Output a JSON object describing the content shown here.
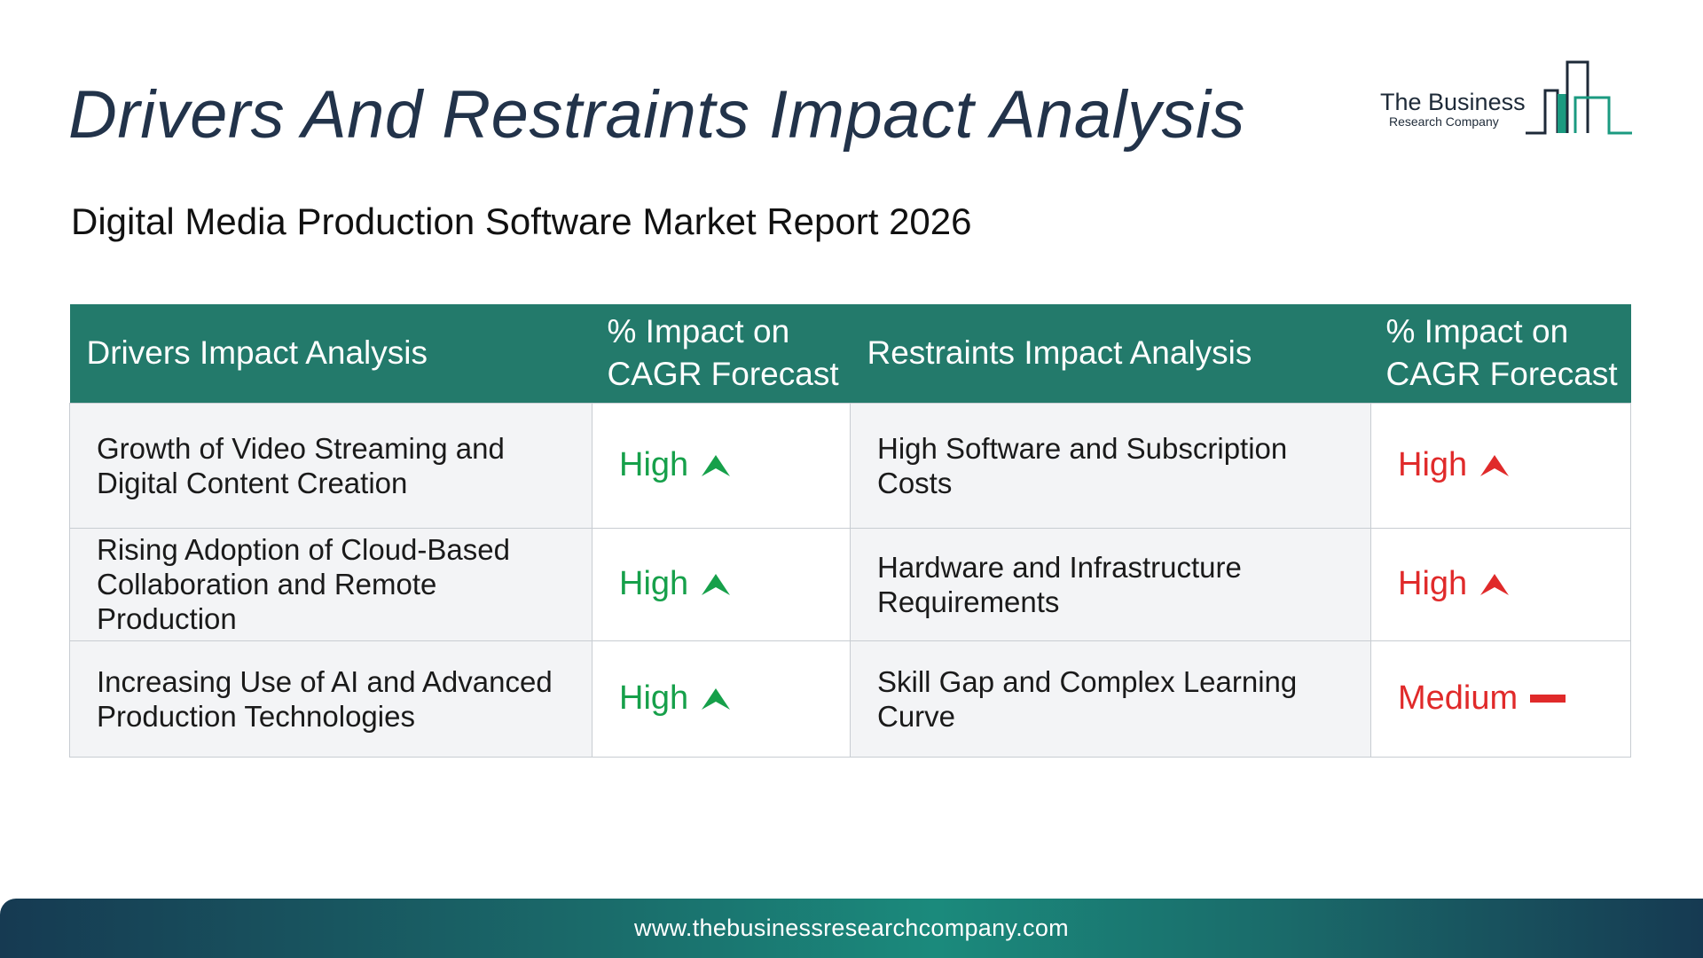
{
  "page": {
    "title": "Drivers And Restraints Impact Analysis",
    "subtitle": "Digital Media Production Software Market Report 2026"
  },
  "logo": {
    "line1": "The Business",
    "line2": "Research Company"
  },
  "table": {
    "headers": {
      "drivers": "Drivers Impact Analysis",
      "drivers_impact_line1": "% Impact on",
      "drivers_impact_line2": "CAGR Forecast",
      "restraints": "Restraints Impact Analysis",
      "restraints_impact_line1": "% Impact on",
      "restraints_impact_line2": "CAGR Forecast"
    },
    "rows": [
      {
        "driver": "Growth of Video Streaming and Digital Content Creation",
        "driver_impact": "High",
        "driver_trend": "up-arrow-icon",
        "restraint": "High Software and Subscription Costs",
        "restraint_impact": "High",
        "restraint_trend": "up-arrow-icon"
      },
      {
        "driver": "Rising Adoption of Cloud-Based Collaboration and Remote Production",
        "driver_impact": "High",
        "driver_trend": "up-arrow-icon",
        "restraint": "Hardware and Infrastructure Requirements",
        "restraint_impact": "High",
        "restraint_trend": "up-arrow-icon"
      },
      {
        "driver": "Increasing Use of AI and Advanced Production Technologies",
        "driver_impact": "High",
        "driver_trend": "up-arrow-icon",
        "restraint": "Skill Gap and Complex Learning Curve",
        "restraint_impact": "Medium",
        "restraint_trend": "dash-icon"
      }
    ]
  },
  "footer": {
    "url": "www.thebusinessresearchcompany.com"
  },
  "colors": {
    "title": "#22334a",
    "header_bg": "#237a6b",
    "driver_impact": "#16a04a",
    "restraint_impact": "#e02a2a"
  }
}
